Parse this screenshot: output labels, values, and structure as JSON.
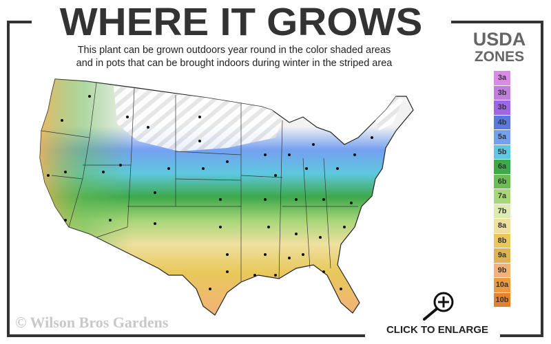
{
  "header": {
    "title": "WHERE IT GROWS",
    "subtitle_line1": "This plant can be grown outdoors year round in the color shaded areas",
    "subtitle_line2": "and in pots that can be brought indoors during winter in the striped area"
  },
  "legend": {
    "title_line1": "USDA",
    "title_line2": "ZONES",
    "zones": [
      {
        "label": "3a",
        "color": "#d98be3"
      },
      {
        "label": "3b",
        "color": "#c07fdc"
      },
      {
        "label": "3b",
        "color": "#a066e8"
      },
      {
        "label": "4b",
        "color": "#5a78e0"
      },
      {
        "label": "5a",
        "color": "#74a0f0"
      },
      {
        "label": "5b",
        "color": "#5ec8e0"
      },
      {
        "label": "6a",
        "color": "#3ea84a"
      },
      {
        "label": "6b",
        "color": "#6cbd55"
      },
      {
        "label": "7a",
        "color": "#a8d67a"
      },
      {
        "label": "7b",
        "color": "#dcecb0"
      },
      {
        "label": "8a",
        "color": "#efe0a0"
      },
      {
        "label": "8b",
        "color": "#e8c85a"
      },
      {
        "label": "9a",
        "color": "#dcb455"
      },
      {
        "label": "9b",
        "color": "#f2b27a"
      },
      {
        "label": "10a",
        "color": "#ea9a40"
      },
      {
        "label": "10b",
        "color": "#e5822e"
      }
    ]
  },
  "map": {
    "striped_area": "white-striped",
    "icon": "us-zone-map"
  },
  "footer": {
    "copyright": "© Wilson Bros Gardens",
    "enlarge_label": "CLICK TO ENLARGE",
    "enlarge_icon": "magnifier-plus-icon"
  },
  "colors": {
    "frame": "#333333",
    "title": "#333333",
    "watermark": "#c8c8c8"
  }
}
